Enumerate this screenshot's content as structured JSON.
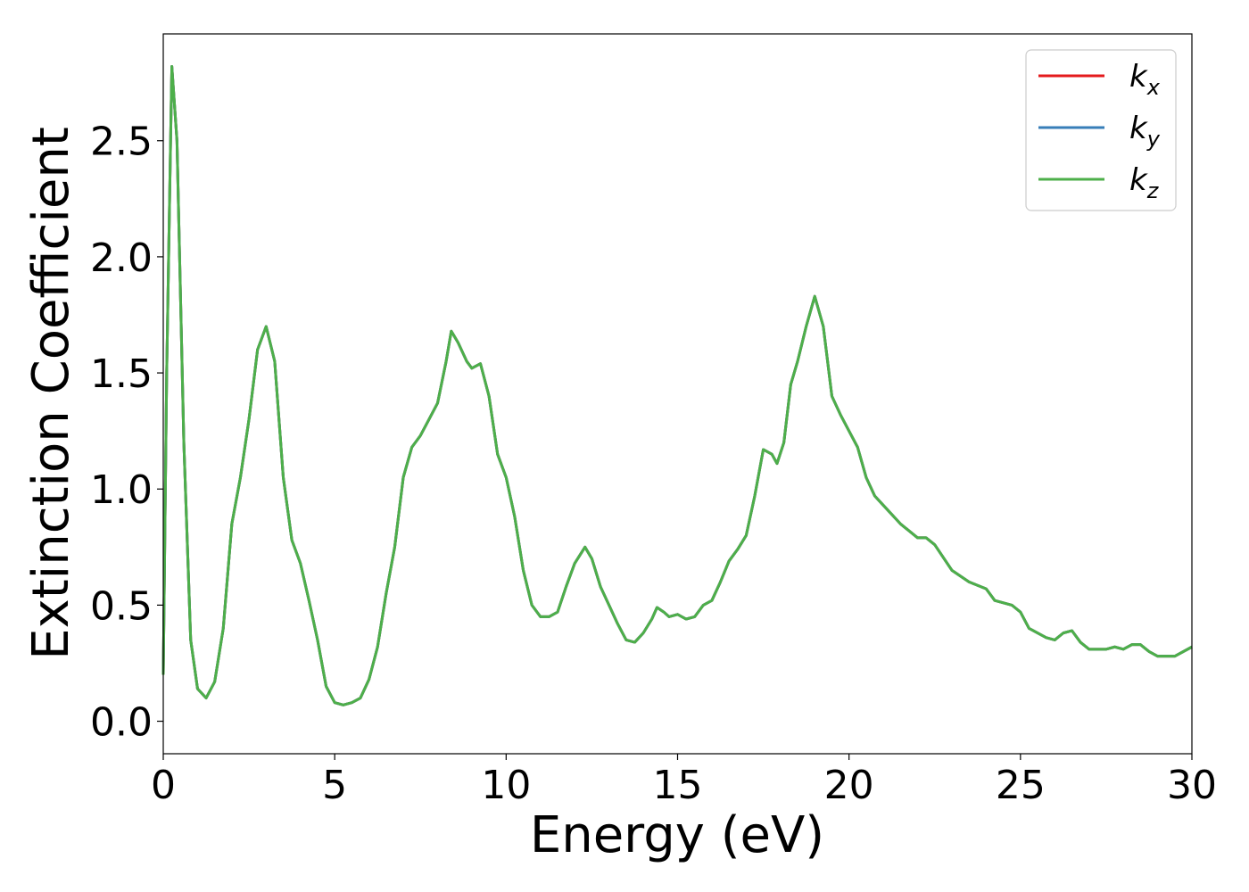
{
  "chart_data": {
    "type": "line",
    "xlabel": "Energy (eV)",
    "ylabel": "Extinction Coefficient",
    "xlim": [
      0,
      30
    ],
    "ylim": [
      -0.14,
      2.96
    ],
    "xticks": [
      0,
      5,
      10,
      15,
      20,
      25,
      30
    ],
    "yticks": [
      {
        "value": 0,
        "label": "0.0"
      },
      {
        "value": 0.5,
        "label": "0.5"
      },
      {
        "value": 1,
        "label": "1.0"
      },
      {
        "value": 1.5,
        "label": "1.5"
      },
      {
        "value": 2,
        "label": "2.0"
      },
      {
        "value": 2.5,
        "label": "2.5"
      }
    ],
    "legend": "upper right",
    "x": [
      0,
      0.1,
      0.25,
      0.4,
      0.6,
      0.8,
      1.0,
      1.25,
      1.5,
      1.75,
      2.0,
      2.25,
      2.5,
      2.75,
      3.0,
      3.25,
      3.5,
      3.75,
      4.0,
      4.25,
      4.5,
      4.75,
      5.0,
      5.25,
      5.5,
      5.75,
      6.0,
      6.25,
      6.5,
      6.75,
      7.0,
      7.25,
      7.5,
      7.75,
      8.0,
      8.25,
      8.4,
      8.6,
      8.85,
      9.0,
      9.25,
      9.5,
      9.75,
      10.0,
      10.25,
      10.5,
      10.75,
      11.0,
      11.25,
      11.5,
      11.75,
      12.0,
      12.3,
      12.5,
      12.75,
      13.0,
      13.25,
      13.5,
      13.75,
      14.0,
      14.25,
      14.4,
      14.6,
      14.75,
      15.0,
      15.25,
      15.5,
      15.75,
      16.0,
      16.25,
      16.5,
      16.75,
      17.0,
      17.25,
      17.5,
      17.75,
      17.9,
      18.1,
      18.3,
      18.5,
      18.75,
      19.0,
      19.25,
      19.5,
      19.75,
      20.0,
      20.25,
      20.5,
      20.75,
      21.0,
      21.5,
      22.0,
      22.25,
      22.5,
      23.0,
      23.5,
      24.0,
      24.25,
      24.75,
      25.0,
      25.25,
      25.75,
      26.0,
      26.25,
      26.5,
      26.75,
      27.0,
      27.5,
      27.75,
      28.0,
      28.25,
      28.5,
      28.75,
      29.0,
      29.5,
      30.0
    ],
    "series": [
      {
        "name": "kx",
        "color": "#e41a1c",
        "values": [
          0.2,
          1.5,
          2.82,
          2.5,
          1.2,
          0.35,
          0.14,
          0.1,
          0.17,
          0.4,
          0.85,
          1.05,
          1.3,
          1.6,
          1.7,
          1.55,
          1.05,
          0.78,
          0.68,
          0.52,
          0.35,
          0.15,
          0.08,
          0.07,
          0.08,
          0.1,
          0.18,
          0.32,
          0.55,
          0.75,
          1.05,
          1.18,
          1.23,
          1.3,
          1.37,
          1.55,
          1.68,
          1.63,
          1.55,
          1.52,
          1.54,
          1.4,
          1.15,
          1.05,
          0.88,
          0.65,
          0.5,
          0.45,
          0.45,
          0.47,
          0.58,
          0.68,
          0.75,
          0.7,
          0.58,
          0.5,
          0.42,
          0.35,
          0.34,
          0.38,
          0.44,
          0.49,
          0.47,
          0.45,
          0.46,
          0.44,
          0.45,
          0.5,
          0.52,
          0.6,
          0.69,
          0.74,
          0.8,
          0.97,
          1.17,
          1.15,
          1.11,
          1.2,
          1.45,
          1.55,
          1.7,
          1.83,
          1.7,
          1.4,
          1.32,
          1.25,
          1.18,
          1.05,
          0.97,
          0.93,
          0.85,
          0.79,
          0.79,
          0.76,
          0.65,
          0.6,
          0.57,
          0.52,
          0.5,
          0.47,
          0.4,
          0.36,
          0.35,
          0.38,
          0.39,
          0.34,
          0.31,
          0.31,
          0.32,
          0.31,
          0.33,
          0.33,
          0.3,
          0.28,
          0.28,
          0.32
        ]
      },
      {
        "name": "ky",
        "color": "#377eb8",
        "values": [
          0.2,
          1.5,
          2.82,
          2.5,
          1.2,
          0.35,
          0.14,
          0.1,
          0.17,
          0.4,
          0.85,
          1.05,
          1.3,
          1.6,
          1.7,
          1.55,
          1.05,
          0.78,
          0.68,
          0.52,
          0.35,
          0.15,
          0.08,
          0.07,
          0.08,
          0.1,
          0.18,
          0.32,
          0.55,
          0.75,
          1.05,
          1.18,
          1.23,
          1.3,
          1.37,
          1.55,
          1.68,
          1.63,
          1.55,
          1.52,
          1.54,
          1.4,
          1.15,
          1.05,
          0.88,
          0.65,
          0.5,
          0.45,
          0.45,
          0.47,
          0.58,
          0.68,
          0.75,
          0.7,
          0.58,
          0.5,
          0.42,
          0.35,
          0.34,
          0.38,
          0.44,
          0.49,
          0.47,
          0.45,
          0.46,
          0.44,
          0.45,
          0.5,
          0.52,
          0.6,
          0.69,
          0.74,
          0.8,
          0.97,
          1.17,
          1.15,
          1.11,
          1.2,
          1.45,
          1.55,
          1.7,
          1.83,
          1.7,
          1.4,
          1.32,
          1.25,
          1.18,
          1.05,
          0.97,
          0.93,
          0.85,
          0.79,
          0.79,
          0.76,
          0.65,
          0.6,
          0.57,
          0.52,
          0.5,
          0.47,
          0.4,
          0.36,
          0.35,
          0.38,
          0.39,
          0.34,
          0.31,
          0.31,
          0.32,
          0.31,
          0.33,
          0.33,
          0.3,
          0.28,
          0.28,
          0.32
        ]
      },
      {
        "name": "kz",
        "color": "#4daf4a",
        "values": [
          0.2,
          1.5,
          2.82,
          2.5,
          1.2,
          0.35,
          0.14,
          0.1,
          0.17,
          0.4,
          0.85,
          1.05,
          1.3,
          1.6,
          1.7,
          1.55,
          1.05,
          0.78,
          0.68,
          0.52,
          0.35,
          0.15,
          0.08,
          0.07,
          0.08,
          0.1,
          0.18,
          0.32,
          0.55,
          0.75,
          1.05,
          1.18,
          1.23,
          1.3,
          1.37,
          1.55,
          1.68,
          1.63,
          1.55,
          1.52,
          1.54,
          1.4,
          1.15,
          1.05,
          0.88,
          0.65,
          0.5,
          0.45,
          0.45,
          0.47,
          0.58,
          0.68,
          0.75,
          0.7,
          0.58,
          0.5,
          0.42,
          0.35,
          0.34,
          0.38,
          0.44,
          0.49,
          0.47,
          0.45,
          0.46,
          0.44,
          0.45,
          0.5,
          0.52,
          0.6,
          0.69,
          0.74,
          0.8,
          0.97,
          1.17,
          1.15,
          1.11,
          1.2,
          1.45,
          1.55,
          1.7,
          1.83,
          1.7,
          1.4,
          1.32,
          1.25,
          1.18,
          1.05,
          0.97,
          0.93,
          0.85,
          0.79,
          0.79,
          0.76,
          0.65,
          0.6,
          0.57,
          0.52,
          0.5,
          0.47,
          0.4,
          0.36,
          0.35,
          0.38,
          0.39,
          0.34,
          0.31,
          0.31,
          0.32,
          0.31,
          0.33,
          0.33,
          0.3,
          0.28,
          0.28,
          0.32
        ]
      }
    ]
  }
}
